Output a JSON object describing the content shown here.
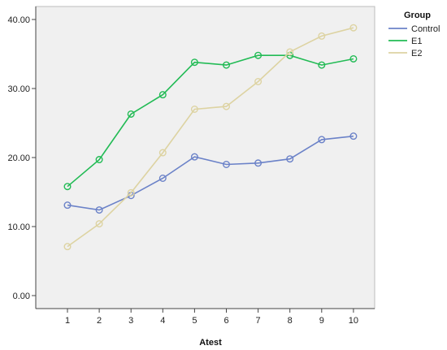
{
  "chart_data": {
    "type": "line",
    "title": "",
    "xlabel": "Atest",
    "ylabel": "",
    "x": [
      1,
      2,
      3,
      4,
      5,
      6,
      7,
      8,
      9,
      10
    ],
    "x_tick_labels": [
      "1",
      "2",
      "3",
      "4",
      "5",
      "6",
      "7",
      "8",
      "9",
      "10"
    ],
    "ylim": [
      0,
      40
    ],
    "y_ticks": [
      0,
      10,
      20,
      30,
      40
    ],
    "y_tick_labels": [
      "0.00",
      "10.00",
      "20.00",
      "30.00",
      "40.00"
    ],
    "grid": false,
    "legend_title": "Group",
    "legend_position": "right",
    "series": [
      {
        "name": "Control",
        "color": "#6b82c8",
        "values": [
          13.1,
          12.4,
          14.5,
          17.0,
          20.1,
          19.0,
          19.2,
          19.8,
          22.6,
          23.1
        ]
      },
      {
        "name": "E1",
        "color": "#22bb55",
        "values": [
          15.8,
          19.7,
          26.3,
          29.1,
          33.8,
          33.4,
          34.8,
          34.8,
          33.4,
          34.3
        ]
      },
      {
        "name": "E2",
        "color": "#ddd3a2",
        "values": [
          7.1,
          10.4,
          14.9,
          20.7,
          27.0,
          27.4,
          31.0,
          35.3,
          37.6,
          38.8
        ]
      }
    ]
  }
}
